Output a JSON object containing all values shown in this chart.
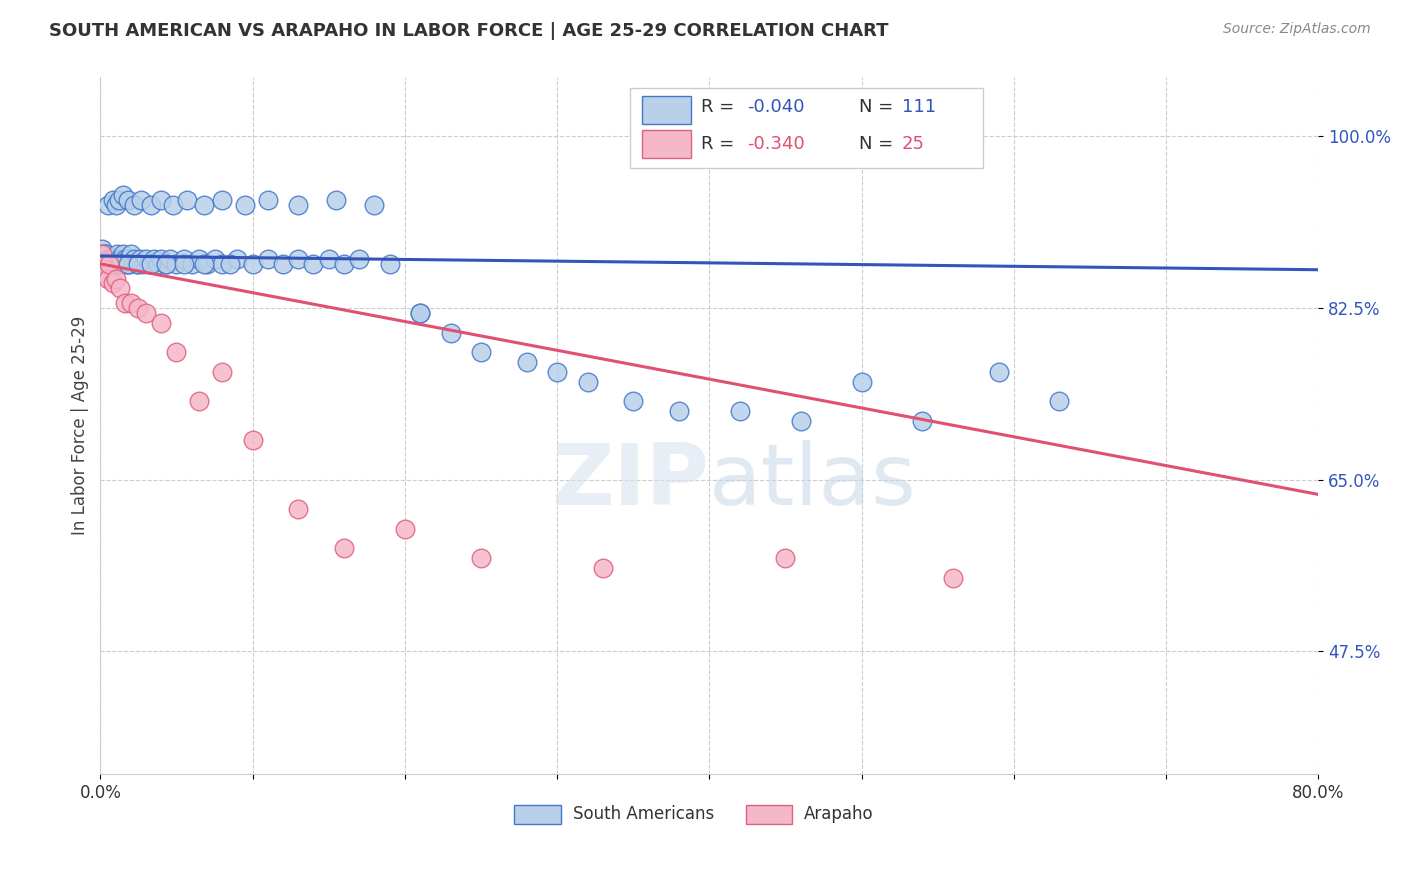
{
  "title": "SOUTH AMERICAN VS ARAPAHO IN LABOR FORCE | AGE 25-29 CORRELATION CHART",
  "source": "Source: ZipAtlas.com",
  "ylabel": "In Labor Force | Age 25-29",
  "yticks": [
    "100.0%",
    "82.5%",
    "65.0%",
    "47.5%"
  ],
  "ytick_values": [
    1.0,
    0.825,
    0.65,
    0.475
  ],
  "xlim": [
    0.0,
    0.8
  ],
  "ylim": [
    0.35,
    1.06
  ],
  "watermark": "ZIPatlas",
  "blue_color": "#b8d0e8",
  "blue_edge_color": "#4477cc",
  "pink_color": "#f5b8c8",
  "pink_edge_color": "#e06080",
  "blue_line_color": "#3355bb",
  "pink_line_color": "#e05070",
  "blue_trendline_x": [
    0.0,
    0.8
  ],
  "blue_trendline_y": [
    0.878,
    0.864
  ],
  "pink_trendline_x": [
    0.0,
    0.8
  ],
  "pink_trendline_y": [
    0.87,
    0.635
  ],
  "south_american_x": [
    0.001,
    0.001,
    0.001,
    0.001,
    0.002,
    0.002,
    0.002,
    0.002,
    0.003,
    0.003,
    0.003,
    0.004,
    0.004,
    0.004,
    0.005,
    0.005,
    0.005,
    0.006,
    0.006,
    0.006,
    0.007,
    0.007,
    0.008,
    0.008,
    0.009,
    0.009,
    0.01,
    0.01,
    0.011,
    0.012,
    0.013,
    0.014,
    0.015,
    0.016,
    0.017,
    0.018,
    0.019,
    0.02,
    0.022,
    0.024,
    0.026,
    0.028,
    0.03,
    0.032,
    0.035,
    0.038,
    0.04,
    0.043,
    0.046,
    0.05,
    0.055,
    0.06,
    0.065,
    0.07,
    0.075,
    0.08,
    0.09,
    0.1,
    0.11,
    0.12,
    0.13,
    0.14,
    0.15,
    0.16,
    0.17,
    0.19,
    0.21,
    0.23,
    0.25,
    0.28,
    0.3,
    0.32,
    0.35,
    0.38,
    0.42,
    0.46,
    0.5,
    0.54,
    0.59,
    0.63,
    0.005,
    0.008,
    0.01,
    0.012,
    0.015,
    0.018,
    0.022,
    0.027,
    0.033,
    0.04,
    0.048,
    0.057,
    0.068,
    0.08,
    0.095,
    0.11,
    0.13,
    0.155,
    0.18,
    0.21,
    0.003,
    0.006,
    0.009,
    0.013,
    0.018,
    0.025,
    0.033,
    0.043,
    0.055,
    0.068,
    0.085
  ],
  "south_american_y": [
    0.88,
    0.875,
    0.87,
    0.885,
    0.875,
    0.87,
    0.88,
    0.875,
    0.87,
    0.875,
    0.88,
    0.875,
    0.88,
    0.87,
    0.875,
    0.87,
    0.875,
    0.87,
    0.875,
    0.87,
    0.875,
    0.87,
    0.875,
    0.87,
    0.875,
    0.87,
    0.875,
    0.87,
    0.88,
    0.875,
    0.87,
    0.875,
    0.88,
    0.875,
    0.87,
    0.875,
    0.87,
    0.88,
    0.875,
    0.87,
    0.875,
    0.87,
    0.875,
    0.87,
    0.875,
    0.87,
    0.875,
    0.87,
    0.875,
    0.87,
    0.875,
    0.87,
    0.875,
    0.87,
    0.875,
    0.87,
    0.875,
    0.87,
    0.875,
    0.87,
    0.875,
    0.87,
    0.875,
    0.87,
    0.875,
    0.87,
    0.82,
    0.8,
    0.78,
    0.77,
    0.76,
    0.75,
    0.73,
    0.72,
    0.72,
    0.71,
    0.75,
    0.71,
    0.76,
    0.73,
    0.93,
    0.935,
    0.93,
    0.935,
    0.94,
    0.935,
    0.93,
    0.935,
    0.93,
    0.935,
    0.93,
    0.935,
    0.93,
    0.935,
    0.93,
    0.935,
    0.93,
    0.935,
    0.93,
    0.82,
    0.87,
    0.87,
    0.87,
    0.87,
    0.87,
    0.87,
    0.87,
    0.87,
    0.87,
    0.87,
    0.87
  ],
  "arapaho_x": [
    0.001,
    0.002,
    0.003,
    0.004,
    0.005,
    0.006,
    0.008,
    0.01,
    0.013,
    0.016,
    0.02,
    0.025,
    0.03,
    0.04,
    0.05,
    0.065,
    0.08,
    0.1,
    0.13,
    0.16,
    0.2,
    0.25,
    0.33,
    0.45,
    0.56
  ],
  "arapaho_y": [
    0.88,
    0.87,
    0.865,
    0.86,
    0.855,
    0.87,
    0.85,
    0.855,
    0.845,
    0.83,
    0.83,
    0.825,
    0.82,
    0.81,
    0.78,
    0.73,
    0.76,
    0.69,
    0.62,
    0.58,
    0.6,
    0.57,
    0.56,
    0.57,
    0.55
  ]
}
